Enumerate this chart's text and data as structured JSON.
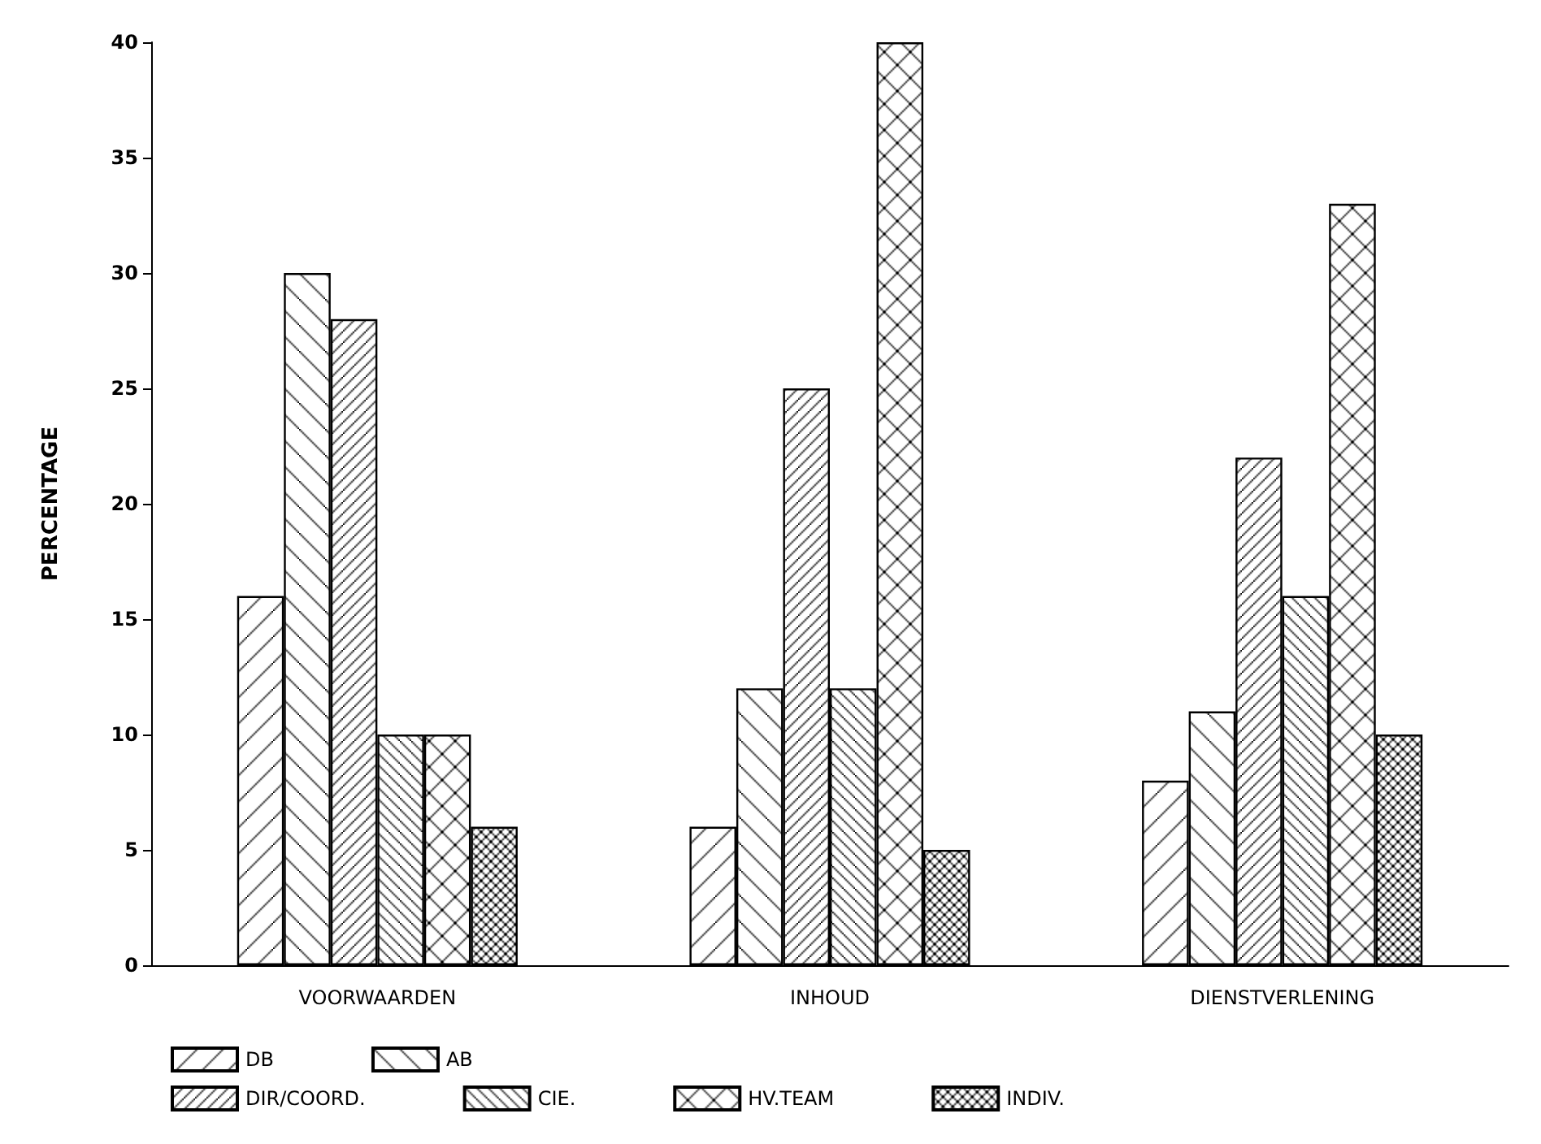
{
  "chart_data": {
    "type": "bar",
    "ylabel": "PERCENTAGE",
    "categories": [
      "VOORWAARDEN",
      "INHOUD",
      "DIENSTVERLENING"
    ],
    "series": [
      {
        "name": "DB",
        "color": "#000000",
        "values": [
          16,
          6,
          8
        ]
      },
      {
        "name": "AB",
        "color": "#000000",
        "values": [
          30,
          12,
          11
        ]
      },
      {
        "name": "DIR/COORD.",
        "color": "#000000",
        "values": [
          28,
          25,
          22
        ]
      },
      {
        "name": "CIE.",
        "color": "#000000",
        "values": [
          10,
          12,
          16
        ]
      },
      {
        "name": "HV.TEAM",
        "color": "#000000",
        "values": [
          10,
          40,
          33
        ]
      },
      {
        "name": "INDIV.",
        "color": "#000000",
        "values": [
          6,
          5,
          10
        ]
      }
    ],
    "ylim": [
      0,
      40
    ],
    "yticks": [
      0,
      5,
      10,
      15,
      20,
      25,
      30,
      35,
      40
    ],
    "grid": false,
    "legend": "bottom"
  }
}
